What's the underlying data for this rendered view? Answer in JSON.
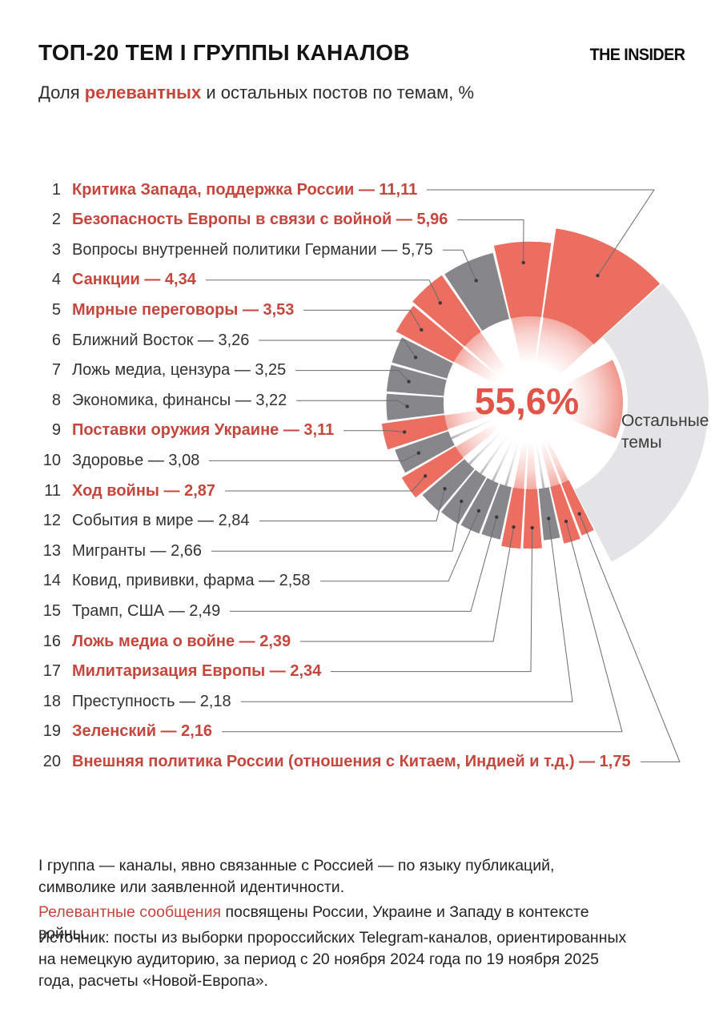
{
  "header": {
    "title": "ТОП-20 ТЕМ I ГРУППЫ КАНАЛОВ",
    "logo": "THE INSIDER"
  },
  "subtitle": {
    "prefix": "Доля ",
    "highlight": "релевантных",
    "rest": " и остальных постов по темам, %"
  },
  "chart_data": {
    "type": "pie",
    "variant": "rose-donut",
    "title": "ТОП-20 ТЕМ I ГРУППЫ КАНАЛОВ",
    "subtitle": "Доля релевантных и остальных постов по темам, %",
    "unit": "%",
    "center_label": "55,6%",
    "others_label": "Остальные темы",
    "angle_per_percent_deg": 3.6,
    "legend": "red wedges = relevant topics, dark gray wedges = other ranked topics, light gray arc = remaining topics",
    "topics": [
      {
        "rank": 1,
        "label": "Критика Запада, поддержка России",
        "value": 11.11,
        "value_text": "11,11",
        "relevant": true
      },
      {
        "rank": 2,
        "label": "Безопасность Европы в связи с войной",
        "value": 5.96,
        "value_text": "5,96",
        "relevant": true
      },
      {
        "rank": 3,
        "label": "Вопросы внутренней политики Германии",
        "value": 5.75,
        "value_text": "5,75",
        "relevant": false
      },
      {
        "rank": 4,
        "label": "Санкции",
        "value": 4.34,
        "value_text": "4,34",
        "relevant": true
      },
      {
        "rank": 5,
        "label": "Мирные переговоры",
        "value": 3.53,
        "value_text": "3,53",
        "relevant": true
      },
      {
        "rank": 6,
        "label": "Ближний Восток",
        "value": 3.26,
        "value_text": "3,26",
        "relevant": false
      },
      {
        "rank": 7,
        "label": "Ложь медиа, цензура",
        "value": 3.25,
        "value_text": "3,25",
        "relevant": false
      },
      {
        "rank": 8,
        "label": "Экономика, финансы",
        "value": 3.22,
        "value_text": "3,22",
        "relevant": false
      },
      {
        "rank": 9,
        "label": "Поставки оружия Украине",
        "value": 3.11,
        "value_text": "3,11",
        "relevant": true
      },
      {
        "rank": 10,
        "label": "Здоровье",
        "value": 3.08,
        "value_text": "3,08",
        "relevant": false
      },
      {
        "rank": 11,
        "label": "Ход войны",
        "value": 2.87,
        "value_text": "2,87",
        "relevant": true
      },
      {
        "rank": 12,
        "label": "События в мире",
        "value": 2.84,
        "value_text": "2,84",
        "relevant": false
      },
      {
        "rank": 13,
        "label": "Мигранты",
        "value": 2.66,
        "value_text": "2,66",
        "relevant": false
      },
      {
        "rank": 14,
        "label": "Ковид, прививки, фарма",
        "value": 2.58,
        "value_text": "2,58",
        "relevant": false
      },
      {
        "rank": 15,
        "label": "Трамп, США",
        "value": 2.49,
        "value_text": "2,49",
        "relevant": false
      },
      {
        "rank": 16,
        "label": "Ложь медиа о войне",
        "value": 2.39,
        "value_text": "2,39",
        "relevant": true
      },
      {
        "rank": 17,
        "label": "Милитаризация Европы",
        "value": 2.34,
        "value_text": "2,34",
        "relevant": true
      },
      {
        "rank": 18,
        "label": "Преступность",
        "value": 2.18,
        "value_text": "2,18",
        "relevant": false
      },
      {
        "rank": 19,
        "label": "Зеленский",
        "value": 2.16,
        "value_text": "2,16",
        "relevant": true
      },
      {
        "rank": 20,
        "label": "Внешняя политика России (отношения с Китаем, Индией и т.д.)",
        "value": 1.75,
        "value_text": "1,75",
        "relevant": true
      }
    ]
  },
  "notes": {
    "group": "I группа — каналы, явно связанные с Россией — по языку публикаций, символике или заявленной идентичности.",
    "relevant_highlight": "Релевантные сообщения",
    "relevant_rest": " посвящены России, Украине и Западу в контексте войны.",
    "source": "Источник: посты из выборки пророссийских Telegram-каналов, ориентированных на немецкую аудиторию, за период с 20 ноября 2024 года по 19 ноября 2025 года, расчеты «Новой-Европа»."
  },
  "colors": {
    "red_text": "#c5463d",
    "red_wedge": "#eb6e61",
    "salmon_ray": "#f0948a",
    "gray_wedge": "#87868a",
    "gray_ray": "#9c9ca0",
    "others_wedge": "#e4e4e6",
    "center_red": "#e2544a",
    "leader_line": "#6b6b6b",
    "dot": "#3a3a3a"
  }
}
